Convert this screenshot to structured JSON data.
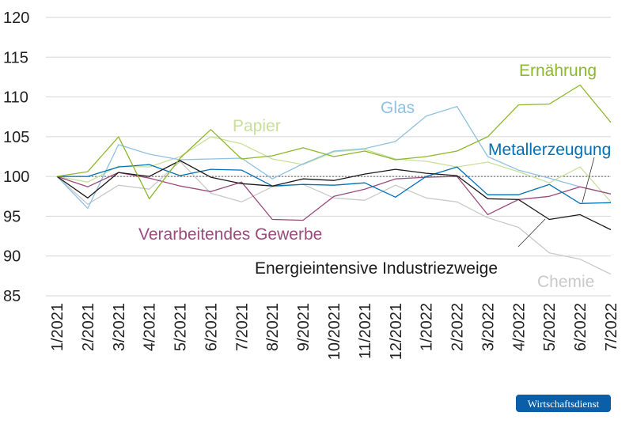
{
  "chart_data": {
    "type": "line",
    "ylim": [
      85,
      120
    ],
    "yticks": [
      "85",
      "90",
      "95",
      "100",
      "105",
      "110",
      "115",
      "120"
    ],
    "grid": true,
    "reference_line": 100,
    "categories": [
      "1/2021",
      "2/2021",
      "3/2021",
      "4/2021",
      "5/2021",
      "6/2021",
      "7/2021",
      "8/2021",
      "9/2021",
      "10/2021",
      "11/2021",
      "12/2021",
      "1/2022",
      "2/2022",
      "3/2022",
      "4/2022",
      "5/2022",
      "6/2022",
      "7/2022"
    ],
    "series": [
      {
        "name": "Chemie",
        "color": "#c9c9c9",
        "values": [
          100,
          96.5,
          98.9,
          98.4,
          101.9,
          97.9,
          96.8,
          98.7,
          99.0,
          97.3,
          97.0,
          98.9,
          97.3,
          96.8,
          94.8,
          93.6,
          90.4,
          89.6,
          87.7
        ]
      },
      {
        "name": "Papier",
        "color": "#c8e09a",
        "values": [
          100,
          99.3,
          101.3,
          101.2,
          102.5,
          105.0,
          104.1,
          102.2,
          101.5,
          103.1,
          103.4,
          102.2,
          101.9,
          101.2,
          101.8,
          100.6,
          99.2,
          101.2,
          96.8
        ]
      },
      {
        "name": "Glas",
        "color": "#8fc1e3",
        "values": [
          100,
          96.0,
          104.0,
          102.8,
          102.1,
          102.2,
          102.3,
          99.7,
          101.6,
          103.2,
          103.5,
          104.4,
          107.6,
          108.8,
          102.5,
          100.8,
          99.8,
          98.7,
          97.8
        ]
      },
      {
        "name": "Verarbeitendes Gewerbe",
        "color": "#9b4a7d",
        "values": [
          100,
          98.7,
          100.5,
          99.8,
          98.8,
          98.1,
          99.3,
          94.6,
          94.5,
          97.5,
          98.4,
          99.7,
          99.9,
          100.0,
          95.2,
          97.1,
          97.5,
          98.7,
          97.8
        ]
      },
      {
        "name": "Metallerzeugung",
        "color": "#0070b8",
        "values": [
          100,
          100,
          101.2,
          101.5,
          100.1,
          100.9,
          100.8,
          98.8,
          99.0,
          98.9,
          99.2,
          97.4,
          100.0,
          101.2,
          97.7,
          97.7,
          99.0,
          96.6,
          96.7
        ]
      },
      {
        "name": "Energieintensive Industriezweige",
        "color": "#1a1a1a",
        "values": [
          100,
          97.3,
          100.5,
          100.0,
          102.0,
          99.9,
          99.1,
          98.8,
          99.7,
          99.5,
          100.3,
          100.9,
          100.4,
          100.1,
          97.2,
          97.1,
          94.6,
          95.2,
          93.3
        ]
      },
      {
        "name": "Ernährung",
        "color": "#8cb82b",
        "values": [
          100,
          100.6,
          105.0,
          97.2,
          102.3,
          105.9,
          102.2,
          102.6,
          103.6,
          102.5,
          103.2,
          102.1,
          102.5,
          103.2,
          105.0,
          109.0,
          109.1,
          111.5,
          106.8
        ]
      }
    ]
  },
  "logo": {
    "text": "Wirtschaftsdienst",
    "color": "#0a5fa8"
  }
}
